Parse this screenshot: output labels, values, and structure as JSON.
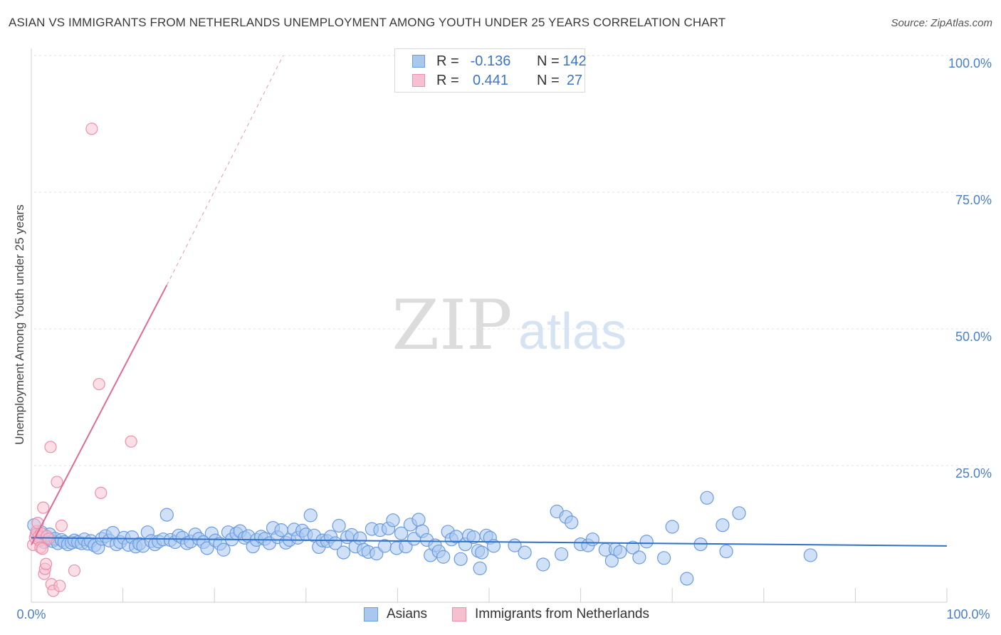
{
  "header": {
    "title": "ASIAN VS IMMIGRANTS FROM NETHERLANDS UNEMPLOYMENT AMONG YOUTH UNDER 25 YEARS CORRELATION CHART",
    "source": "Source: ZipAtlas.com"
  },
  "watermark": {
    "zip": "ZIP",
    "atlas": "atlas"
  },
  "colors": {
    "asian_fill": "#a9c8f0",
    "asian_stroke": "#6b9be0",
    "asian_line": "#2f72c8",
    "neth_fill": "#f7c0d0",
    "neth_stroke": "#ec8faa",
    "neth_line": "#e06a97",
    "tick_label": "#4a7fcb",
    "grid": "#e3e3e3"
  },
  "legend_top": {
    "rows": [
      {
        "series": "Asians",
        "r_label": "R =",
        "r_value": "-0.136",
        "n_label": "N =",
        "n_value": "142"
      },
      {
        "series": "Immigrants from Netherlands",
        "r_label": "R =",
        "r_value": "0.441",
        "n_label": "N =",
        "n_value": "27"
      }
    ]
  },
  "legend_bottom": {
    "asians": "Asians",
    "netherlands": "Immigrants from Netherlands"
  },
  "chart_data": {
    "type": "scatter",
    "title": "ASIAN VS IMMIGRANTS FROM NETHERLANDS UNEMPLOYMENT AMONG YOUTH UNDER 25 YEARS CORRELATION CHART",
    "xlabel": "",
    "ylabel": "Unemployment Among Youth under 25 years",
    "xlim": [
      0,
      100
    ],
    "ylim": [
      0,
      100
    ],
    "x_tick_labels": [
      "0.0%",
      "100.0%"
    ],
    "y_tick_labels": [
      {
        "value": 25,
        "label": "25.0%"
      },
      {
        "value": 50,
        "label": "50.0%"
      },
      {
        "value": 75,
        "label": "75.0%"
      },
      {
        "value": 100,
        "label": "100.0%"
      }
    ],
    "grid": true,
    "legend_position": "top-center",
    "series": [
      {
        "name": "Asians",
        "r": -0.136,
        "n": 142,
        "trendline": {
          "x": [
            0,
            100
          ],
          "y": [
            11.8,
            10.3
          ]
        },
        "points": [
          [
            0.3,
            14.1
          ],
          [
            0.6,
            12.3
          ],
          [
            0.9,
            11.5
          ],
          [
            1.1,
            12.8
          ],
          [
            1.4,
            11.0
          ],
          [
            1.7,
            11.9
          ],
          [
            2.0,
            12.4
          ],
          [
            2.3,
            11.2
          ],
          [
            2.6,
            11.6
          ],
          [
            2.9,
            10.8
          ],
          [
            3.3,
            11.4
          ],
          [
            3.6,
            11.0
          ],
          [
            4.0,
            10.6
          ],
          [
            4.4,
            10.9
          ],
          [
            4.7,
            11.3
          ],
          [
            5.1,
            11.0
          ],
          [
            5.5,
            10.8
          ],
          [
            5.8,
            11.5
          ],
          [
            6.2,
            10.7
          ],
          [
            6.5,
            11.2
          ],
          [
            6.9,
            10.4
          ],
          [
            7.3,
            10.0
          ],
          [
            7.7,
            11.6
          ],
          [
            8.1,
            12.1
          ],
          [
            8.5,
            11.3
          ],
          [
            8.9,
            12.7
          ],
          [
            9.3,
            10.6
          ],
          [
            9.7,
            11.0
          ],
          [
            10.1,
            11.8
          ],
          [
            10.6,
            10.5
          ],
          [
            11.0,
            11.9
          ],
          [
            11.4,
            10.2
          ],
          [
            11.8,
            10.7
          ],
          [
            12.2,
            10.3
          ],
          [
            12.7,
            12.8
          ],
          [
            13.1,
            11.2
          ],
          [
            13.5,
            10.6
          ],
          [
            13.9,
            11.1
          ],
          [
            14.4,
            11.5
          ],
          [
            14.8,
            16.0
          ],
          [
            15.2,
            11.4
          ],
          [
            15.7,
            11.0
          ],
          [
            16.1,
            12.2
          ],
          [
            16.5,
            11.8
          ],
          [
            17.0,
            10.8
          ],
          [
            17.4,
            11.1
          ],
          [
            17.9,
            12.4
          ],
          [
            18.3,
            11.6
          ],
          [
            18.8,
            11.0
          ],
          [
            19.2,
            9.9
          ],
          [
            19.7,
            12.6
          ],
          [
            20.1,
            11.3
          ],
          [
            20.6,
            10.7
          ],
          [
            21.0,
            9.6
          ],
          [
            21.5,
            12.8
          ],
          [
            21.9,
            11.5
          ],
          [
            22.4,
            12.6
          ],
          [
            22.8,
            13.0
          ],
          [
            23.3,
            11.8
          ],
          [
            23.7,
            12.1
          ],
          [
            24.2,
            10.2
          ],
          [
            24.6,
            11.4
          ],
          [
            25.1,
            12.0
          ],
          [
            25.5,
            11.6
          ],
          [
            26.0,
            10.8
          ],
          [
            26.4,
            13.6
          ],
          [
            26.9,
            11.9
          ],
          [
            27.3,
            13.2
          ],
          [
            27.8,
            10.9
          ],
          [
            28.2,
            11.4
          ],
          [
            28.7,
            13.3
          ],
          [
            29.1,
            11.8
          ],
          [
            29.6,
            13.1
          ],
          [
            30.0,
            12.4
          ],
          [
            30.5,
            15.9
          ],
          [
            30.9,
            12.2
          ],
          [
            31.4,
            10.1
          ],
          [
            31.8,
            11.3
          ],
          [
            32.3,
            11.2
          ],
          [
            32.7,
            12.0
          ],
          [
            33.2,
            10.8
          ],
          [
            33.6,
            14.0
          ],
          [
            34.1,
            9.1
          ],
          [
            34.5,
            11.9
          ],
          [
            35.0,
            12.3
          ],
          [
            35.4,
            10.2
          ],
          [
            35.9,
            11.7
          ],
          [
            36.3,
            9.6
          ],
          [
            36.8,
            9.2
          ],
          [
            37.2,
            13.4
          ],
          [
            37.7,
            8.9
          ],
          [
            38.1,
            13.2
          ],
          [
            38.6,
            10.3
          ],
          [
            39.0,
            13.5
          ],
          [
            39.5,
            15.0
          ],
          [
            39.9,
            9.9
          ],
          [
            40.4,
            12.6
          ],
          [
            40.9,
            10.2
          ],
          [
            41.4,
            14.2
          ],
          [
            41.8,
            11.6
          ],
          [
            42.3,
            15.1
          ],
          [
            42.7,
            13.0
          ],
          [
            43.2,
            11.4
          ],
          [
            43.6,
            8.6
          ],
          [
            44.1,
            10.4
          ],
          [
            44.5,
            9.3
          ],
          [
            45.0,
            8.3
          ],
          [
            45.5,
            12.9
          ],
          [
            45.9,
            11.5
          ],
          [
            46.4,
            12.0
          ],
          [
            46.9,
            7.9
          ],
          [
            47.4,
            10.6
          ],
          [
            47.8,
            12.2
          ],
          [
            48.3,
            11.9
          ],
          [
            48.8,
            9.4
          ],
          [
            49.2,
            9.1
          ],
          [
            49.7,
            12.2
          ],
          [
            50.1,
            11.8
          ],
          [
            50.5,
            10.3
          ],
          [
            52.8,
            10.4
          ],
          [
            53.9,
            9.1
          ],
          [
            55.9,
            6.9
          ],
          [
            57.4,
            16.6
          ],
          [
            57.9,
            8.8
          ],
          [
            58.4,
            15.6
          ],
          [
            59.0,
            14.6
          ],
          [
            60.0,
            10.6
          ],
          [
            60.8,
            10.4
          ],
          [
            61.3,
            11.5
          ],
          [
            62.7,
            9.6
          ],
          [
            63.4,
            7.6
          ],
          [
            63.8,
            9.7
          ],
          [
            64.3,
            9.2
          ],
          [
            65.7,
            10.0
          ],
          [
            66.4,
            8.2
          ],
          [
            67.2,
            11.1
          ],
          [
            69.1,
            8.1
          ],
          [
            70.0,
            13.8
          ],
          [
            71.6,
            4.3
          ],
          [
            73.1,
            10.6
          ],
          [
            73.8,
            19.1
          ],
          [
            75.5,
            14.1
          ],
          [
            75.9,
            9.3
          ],
          [
            77.3,
            16.3
          ],
          [
            85.1,
            8.6
          ],
          [
            49.0,
            6.2
          ]
        ]
      },
      {
        "name": "Immigrants from Netherlands",
        "r": 0.441,
        "n": 27,
        "trendline": {
          "x": [
            0,
            14.8
          ],
          "y": [
            10.5,
            58.0
          ],
          "dashed_extension": {
            "x": [
              14.8,
              27.5
            ],
            "y": [
              58.0,
              100.0
            ]
          }
        },
        "points": [
          [
            0.2,
            10.5
          ],
          [
            0.4,
            11.8
          ],
          [
            0.5,
            12.5
          ],
          [
            0.6,
            13.0
          ],
          [
            0.7,
            14.5
          ],
          [
            0.8,
            12.0
          ],
          [
            0.9,
            11.2
          ],
          [
            1.0,
            10.0
          ],
          [
            1.1,
            12.6
          ],
          [
            1.2,
            9.8
          ],
          [
            1.3,
            17.3
          ],
          [
            1.4,
            5.2
          ],
          [
            1.5,
            6.1
          ],
          [
            1.6,
            7.0
          ],
          [
            1.7,
            12.1
          ],
          [
            1.9,
            11.6
          ],
          [
            2.1,
            28.4
          ],
          [
            2.2,
            3.3
          ],
          [
            2.4,
            2.1
          ],
          [
            2.8,
            22.0
          ],
          [
            3.1,
            3.0
          ],
          [
            3.3,
            14.0
          ],
          [
            4.7,
            5.8
          ],
          [
            6.6,
            86.6
          ],
          [
            7.4,
            39.9
          ],
          [
            7.6,
            20.0
          ],
          [
            10.9,
            29.4
          ]
        ]
      }
    ]
  }
}
